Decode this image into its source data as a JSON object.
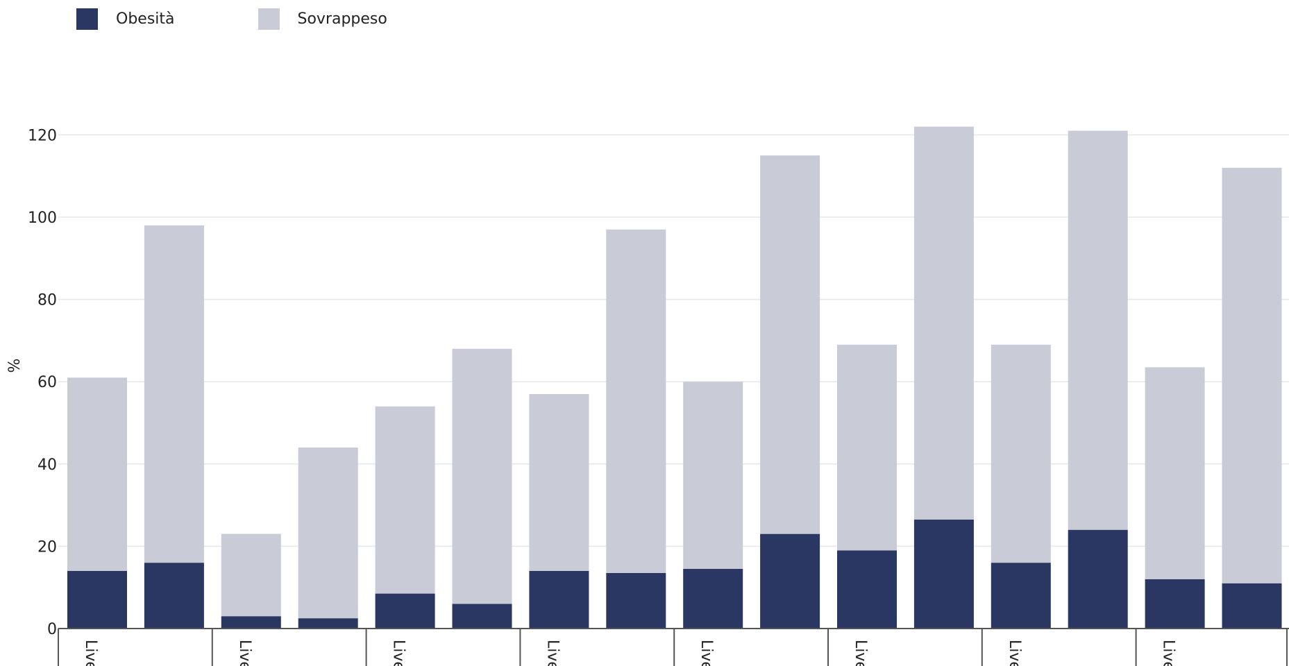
{
  "chart_data": {
    "type": "bar",
    "stacked": true,
    "ylabel": "%",
    "ylim": [
      0,
      120
    ],
    "yticks": [
      0,
      20,
      40,
      60,
      80,
      100,
      120
    ],
    "grid": true,
    "legend_position": "top-left",
    "groups": [
      {
        "label": "Live",
        "bars": 2
      },
      {
        "label": "Live",
        "bars": 2
      },
      {
        "label": "Live",
        "bars": 2
      },
      {
        "label": "Live",
        "bars": 2
      },
      {
        "label": "Live",
        "bars": 2
      },
      {
        "label": "Live",
        "bars": 2
      },
      {
        "label": "Live",
        "bars": 2
      },
      {
        "label": "Live",
        "bars": 2
      }
    ],
    "series": [
      {
        "name": "Obesità",
        "color": "#2b3763",
        "values": [
          14,
          16,
          3,
          2.5,
          8.5,
          6,
          14,
          13.5,
          14.5,
          23,
          19,
          26.5,
          16,
          24,
          12,
          11
        ]
      },
      {
        "name": "Sovrappeso",
        "color": "#c9cbd7",
        "values": [
          47,
          82,
          20,
          41.5,
          45.5,
          62,
          43,
          83.5,
          45.5,
          92,
          50,
          95.5,
          53,
          97,
          51.5,
          101
        ]
      }
    ]
  }
}
